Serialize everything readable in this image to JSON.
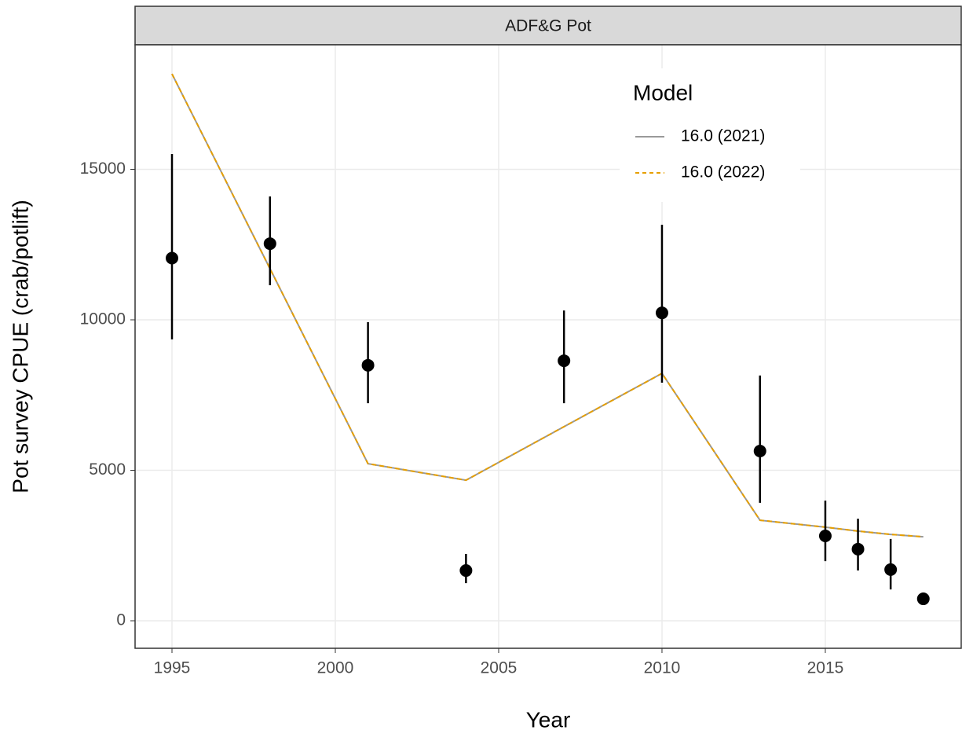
{
  "chart_data": {
    "type": "line",
    "panel_title": "ADF&G Pot",
    "x_label": "Year",
    "y_label": "Pot survey CPUE (crab/potlift)",
    "legend_title": "Model",
    "legend_position": "top-right",
    "grid": true,
    "x": [
      1995,
      1998,
      2001,
      2004,
      2007,
      2010,
      2013,
      2015,
      2016,
      2017,
      2018
    ],
    "series": [
      {
        "name": "16.0 (2021)",
        "color": "#999999",
        "dash": false,
        "values": [
          18170,
          11700,
          5220,
          4670,
          6450,
          8220,
          3340,
          3110,
          2980,
          2870,
          2790
        ]
      },
      {
        "name": "16.0 (2022)",
        "color": "#E69F00",
        "dash": true,
        "values": [
          18170,
          11700,
          5220,
          4670,
          6450,
          8220,
          3340,
          3110,
          2980,
          2870,
          2790
        ]
      }
    ],
    "observed": {
      "color": "#000000",
      "values": [
        12050,
        12530,
        8490,
        1670,
        8640,
        10230,
        5640,
        2820,
        2380,
        1700,
        730
      ],
      "lower": [
        9350,
        11150,
        7230,
        1250,
        7230,
        7910,
        3920,
        1980,
        1670,
        1040,
        620
      ],
      "upper": [
        15510,
        14100,
        9920,
        2220,
        10310,
        13160,
        8150,
        3990,
        3390,
        2720,
        850
      ]
    },
    "xlim": [
      1993.87,
      2019.16
    ],
    "ylim": [
      -914,
      19138
    ],
    "xticks": [
      1995,
      2000,
      2005,
      2010,
      2015
    ],
    "yticks": [
      0,
      5000,
      10000,
      15000
    ]
  }
}
